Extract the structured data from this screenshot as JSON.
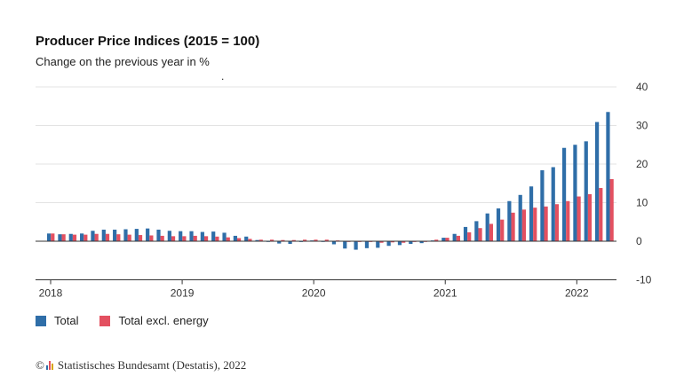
{
  "header": {
    "title": "Producer Price Indices (2015 = 100)",
    "subtitle": "Change on the previous year in %",
    "dot": "."
  },
  "legend": [
    {
      "label": "Total",
      "color": "#2f6ea8"
    },
    {
      "label": "Total excl. energy",
      "color": "#e35060"
    }
  ],
  "footer": {
    "copyright": "©",
    "text": "Statistisches Bundesamt (Destatis), 2022"
  },
  "chart_data": {
    "type": "bar",
    "x_tick_labels": [
      "2018",
      "2019",
      "2020",
      "2021",
      "2022"
    ],
    "y_tick_labels": [
      "40",
      "30",
      "20",
      "10",
      "0",
      "-10"
    ],
    "ylim": [
      -10,
      40
    ],
    "grid": true,
    "y_axis_position": "right",
    "categories": [
      "2018-01",
      "2018-02",
      "2018-03",
      "2018-04",
      "2018-05",
      "2018-06",
      "2018-07",
      "2018-08",
      "2018-09",
      "2018-10",
      "2018-11",
      "2018-12",
      "2019-01",
      "2019-02",
      "2019-03",
      "2019-04",
      "2019-05",
      "2019-06",
      "2019-07",
      "2019-08",
      "2019-09",
      "2019-10",
      "2019-11",
      "2019-12",
      "2020-01",
      "2020-02",
      "2020-03",
      "2020-04",
      "2020-05",
      "2020-06",
      "2020-07",
      "2020-08",
      "2020-09",
      "2020-10",
      "2020-11",
      "2020-12",
      "2021-01",
      "2021-02",
      "2021-03",
      "2021-04",
      "2021-05",
      "2021-06",
      "2021-07",
      "2021-08",
      "2021-09",
      "2021-10",
      "2021-11",
      "2021-12",
      "2022-01",
      "2022-02",
      "2022-03",
      "2022-04"
    ],
    "series": [
      {
        "name": "Total",
        "color": "#2f6ea8",
        "values": [
          2.0,
          1.8,
          1.9,
          2.0,
          2.7,
          3.0,
          3.0,
          3.1,
          3.2,
          3.3,
          3.0,
          2.7,
          2.6,
          2.6,
          2.4,
          2.5,
          2.2,
          1.4,
          1.2,
          0.3,
          -0.1,
          -0.6,
          -0.7,
          -0.2,
          0.2,
          -0.1,
          -0.8,
          -1.9,
          -2.2,
          -1.8,
          -1.7,
          -1.2,
          -1.0,
          -0.7,
          -0.5,
          0.2,
          0.9,
          1.9,
          3.7,
          5.2,
          7.2,
          8.5,
          10.4,
          12.0,
          14.2,
          18.4,
          19.2,
          24.2,
          25.0,
          25.9,
          30.9,
          33.5
        ]
      },
      {
        "name": "Total excl. energy",
        "color": "#e35060",
        "values": [
          2.0,
          1.8,
          1.7,
          1.7,
          1.9,
          1.9,
          1.8,
          1.7,
          1.6,
          1.5,
          1.4,
          1.3,
          1.3,
          1.4,
          1.3,
          1.2,
          1.0,
          0.8,
          0.6,
          0.4,
          0.4,
          0.3,
          0.3,
          0.4,
          0.4,
          0.4,
          0.2,
          0.0,
          -0.2,
          -0.2,
          -0.4,
          -0.3,
          -0.4,
          -0.2,
          0.0,
          0.4,
          0.9,
          1.4,
          2.3,
          3.4,
          4.5,
          5.6,
          7.4,
          8.2,
          8.7,
          9.0,
          9.6,
          10.4,
          11.6,
          12.2,
          13.8,
          16.1
        ]
      }
    ]
  }
}
